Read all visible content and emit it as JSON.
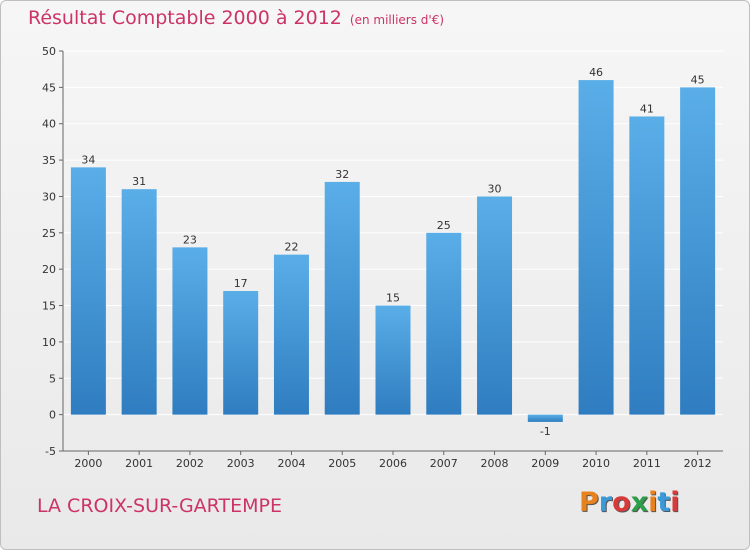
{
  "header": {
    "title": "Résultat Comptable 2000 à 2012",
    "unit": "(en milliers d'€)"
  },
  "footer": {
    "commune": "LA CROIX-SUR-GARTEMPE",
    "logo": "Proxiti",
    "logo_colors": [
      "#e8821e",
      "#3a9ad9",
      "#d63a3a",
      "#2e9e4a",
      "#e8821e",
      "#3a9ad9",
      "#d63a3a"
    ]
  },
  "colors": {
    "bar_light": "#5aaee8",
    "bar_dark": "#2f7dc0",
    "title": "#cc3366",
    "grid": "#ffffff"
  },
  "chart_data": {
    "type": "bar",
    "title": "Résultat Comptable 2000 à 2012",
    "xlabel": "",
    "ylabel": "",
    "categories": [
      "2000",
      "2001",
      "2002",
      "2003",
      "2004",
      "2005",
      "2006",
      "2007",
      "2008",
      "2009",
      "2010",
      "2011",
      "2012"
    ],
    "values": [
      34,
      31,
      23,
      17,
      22,
      32,
      15,
      25,
      30,
      -1,
      46,
      41,
      45
    ],
    "ylim": [
      -5,
      50
    ],
    "yticks": [
      -5,
      0,
      5,
      10,
      15,
      20,
      25,
      30,
      35,
      40,
      45,
      50
    ],
    "grid": true,
    "show_values": true
  }
}
